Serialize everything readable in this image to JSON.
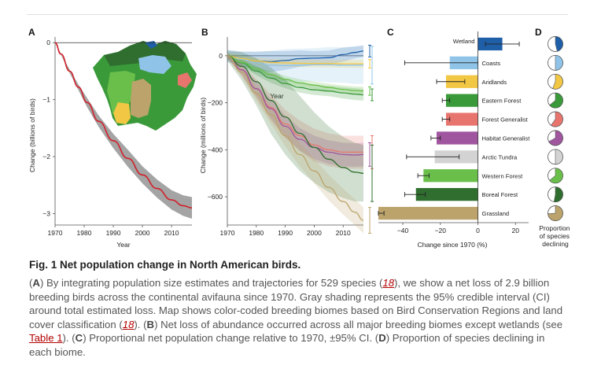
{
  "chart_data": [
    {
      "panel": "A",
      "type": "line",
      "xlabel": "Year",
      "ylabel": "Change (billions of birds)",
      "xlim": [
        1970,
        2017
      ],
      "ylim": [
        -3.2,
        0.1
      ],
      "xticks": [
        1970,
        1980,
        1990,
        2000,
        2010
      ],
      "yticks": [
        0,
        -1,
        -2,
        -3
      ],
      "x": [
        1970,
        1972,
        1975,
        1978,
        1981,
        1985,
        1990,
        1995,
        2000,
        2005,
        2010,
        2014,
        2017
      ],
      "y": [
        0,
        -0.2,
        -0.5,
        -0.78,
        -1.05,
        -1.38,
        -1.72,
        -2.03,
        -2.32,
        -2.56,
        -2.76,
        -2.86,
        -2.9
      ],
      "ci_lower": [
        0,
        -0.21,
        -0.53,
        -0.83,
        -1.13,
        -1.48,
        -1.85,
        -2.18,
        -2.47,
        -2.72,
        -2.93,
        -3.04,
        -3.09
      ],
      "ci_upper": [
        0,
        -0.19,
        -0.47,
        -0.73,
        -0.97,
        -1.28,
        -1.6,
        -1.88,
        -2.17,
        -2.4,
        -2.59,
        -2.68,
        -2.71
      ],
      "colors": {
        "line": "#d0202a",
        "band": "#9a9a9a"
      }
    },
    {
      "panel": "B",
      "type": "line",
      "xlabel": "Year",
      "ylabel": "Change (millions of birds)",
      "xlim": [
        1970,
        2017
      ],
      "ylim": [
        -720,
        80
      ],
      "xticks": [
        1970,
        1980,
        1990,
        2000,
        2010
      ],
      "yticks": [
        0,
        -200,
        -400,
        -600
      ],
      "x": [
        1970,
        1975,
        1980,
        1985,
        1990,
        1995,
        2000,
        2005,
        2010,
        2014,
        2017
      ],
      "series": [
        {
          "biome": "Wetland",
          "color": "#1f5fa8",
          "values": [
            0,
            -12,
            -22,
            -25,
            -20,
            -12,
            -10,
            -8,
            5,
            14,
            20
          ],
          "band": [
            25,
            30,
            40,
            45,
            40,
            35,
            30,
            30,
            30,
            25,
            25
          ]
        },
        {
          "biome": "Coasts",
          "color": "#8fc4e8",
          "values": [
            0,
            -15,
            -30,
            -40,
            -42,
            -40,
            -38,
            -38,
            -40,
            -40,
            -40
          ],
          "band": [
            20,
            30,
            45,
            60,
            70,
            70,
            70,
            75,
            75,
            80,
            80
          ]
        },
        {
          "biome": "Aridlands",
          "color": "#f2c744",
          "values": [
            0,
            -12,
            -22,
            -28,
            -30,
            -32,
            -33,
            -33,
            -34,
            -34,
            -34
          ],
          "band": [
            10,
            12,
            14,
            15,
            16,
            16,
            16,
            17,
            17,
            18,
            18
          ]
        },
        {
          "biome": "Eastern Forest",
          "color": "#3a9a3a",
          "values": [
            0,
            -30,
            -65,
            -95,
            -118,
            -135,
            -145,
            -150,
            -158,
            -163,
            -166
          ],
          "band": [
            10,
            15,
            18,
            20,
            20,
            22,
            22,
            22,
            24,
            25,
            25
          ]
        },
        {
          "biome": "Western Forest",
          "color": "#6abf4b",
          "values": [
            0,
            -28,
            -55,
            -80,
            -100,
            -115,
            -125,
            -135,
            -143,
            -148,
            -150
          ],
          "band": [
            8,
            10,
            12,
            14,
            15,
            15,
            16,
            16,
            17,
            18,
            18
          ]
        },
        {
          "biome": "Forest Generalist",
          "color": "#e7756d",
          "values": [
            0,
            -60,
            -140,
            -220,
            -290,
            -340,
            -380,
            -400,
            -410,
            -410,
            -410
          ],
          "band": [
            10,
            25,
            40,
            55,
            60,
            65,
            70,
            70,
            70,
            70,
            70
          ]
        },
        {
          "biome": "Habitat Generalist",
          "color": "#a0569f",
          "values": [
            0,
            -60,
            -140,
            -225,
            -300,
            -355,
            -390,
            -410,
            -420,
            -422,
            -420
          ],
          "band": [
            10,
            20,
            30,
            40,
            45,
            48,
            50,
            50,
            50,
            50,
            50
          ]
        },
        {
          "biome": "Boreal Forest",
          "color": "#2f6e2f",
          "values": [
            0,
            -45,
            -110,
            -190,
            -260,
            -330,
            -390,
            -440,
            -475,
            -495,
            -500
          ],
          "band": [
            20,
            60,
            100,
            140,
            160,
            160,
            150,
            140,
            130,
            125,
            120
          ]
        },
        {
          "biome": "Grassland",
          "color": "#bca36b",
          "values": [
            0,
            -70,
            -160,
            -250,
            -340,
            -420,
            -490,
            -560,
            -620,
            -665,
            -700
          ],
          "band": [
            10,
            20,
            30,
            40,
            45,
            50,
            52,
            55,
            55,
            55,
            55
          ]
        }
      ]
    },
    {
      "panel": "C",
      "type": "bar",
      "orientation": "horizontal",
      "xlabel": "Change since 1970 (%)",
      "xlim": [
        -53,
        27
      ],
      "xticks": [
        -40,
        -20,
        0,
        20
      ],
      "categories": [
        "Wetland",
        "Coasts",
        "Aridlands",
        "Eastern Forest",
        "Forest Generalist",
        "Habitat Generalist",
        "Arctic Tundra",
        "Western Forest",
        "Boreal Forest",
        "Grassland"
      ],
      "values": [
        13,
        -15,
        -17,
        -17,
        -17,
        -22,
        -23,
        -29,
        -33,
        -53
      ],
      "ci_low": [
        4,
        -39,
        -22,
        -19,
        -19,
        -25,
        -38,
        -32,
        -39,
        -53
      ],
      "ci_high": [
        22,
        0,
        -7,
        -15,
        -15,
        -20,
        -10,
        -26,
        -28,
        -50
      ],
      "colors": [
        "#1f5fa8",
        "#8fc4e8",
        "#f2c744",
        "#3a9a3a",
        "#e7756d",
        "#a0569f",
        "#d3d3d3",
        "#6abf4b",
        "#2f6e2f",
        "#bca36b"
      ]
    },
    {
      "panel": "D",
      "type": "pie",
      "title": "Proportion of species declining",
      "categories": [
        "Wetland",
        "Coasts",
        "Aridlands",
        "Eastern Forest",
        "Forest Generalist",
        "Habitat Generalist",
        "Arctic Tundra",
        "Western Forest",
        "Boreal Forest",
        "Grassland"
      ],
      "proportion_declining": [
        0.46,
        0.5,
        0.56,
        0.64,
        0.6,
        0.67,
        0.5,
        0.64,
        0.53,
        0.74
      ]
    }
  ],
  "figure": {
    "panels": {
      "a": "A",
      "b": "B",
      "c": "C",
      "d": "D"
    }
  },
  "caption": {
    "label": "Fig. 1",
    "title": "Net population change in North American birds.",
    "parts": [
      {
        "t": "(",
        "s": "n"
      },
      {
        "t": "A",
        "s": "b"
      },
      {
        "t": ") By integrating population size estimates and trajectories for 529 species (",
        "s": "n"
      },
      {
        "t": "18",
        "s": "r"
      },
      {
        "t": "), we show a net loss of 2.9 billion breeding birds across the continental avifauna since 1970. Gray shading represents the 95% credible interval (CI) around total estimated loss. Map shows color-coded breeding biomes based on Bird Conservation Regions and land cover classification (",
        "s": "n"
      },
      {
        "t": "18",
        "s": "r"
      },
      {
        "t": "). (",
        "s": "n"
      },
      {
        "t": "B",
        "s": "b"
      },
      {
        "t": ") Net loss of abundance occurred across all major breeding biomes except wetlands (see ",
        "s": "n"
      },
      {
        "t": "Table 1",
        "s": "l"
      },
      {
        "t": "). (",
        "s": "n"
      },
      {
        "t": "C",
        "s": "b"
      },
      {
        "t": ") Proportional net population change relative to 1970, ±95% CI. (",
        "s": "n"
      },
      {
        "t": "D",
        "s": "b"
      },
      {
        "t": ") Proportion of species declining in each biome.",
        "s": "n"
      }
    ]
  }
}
